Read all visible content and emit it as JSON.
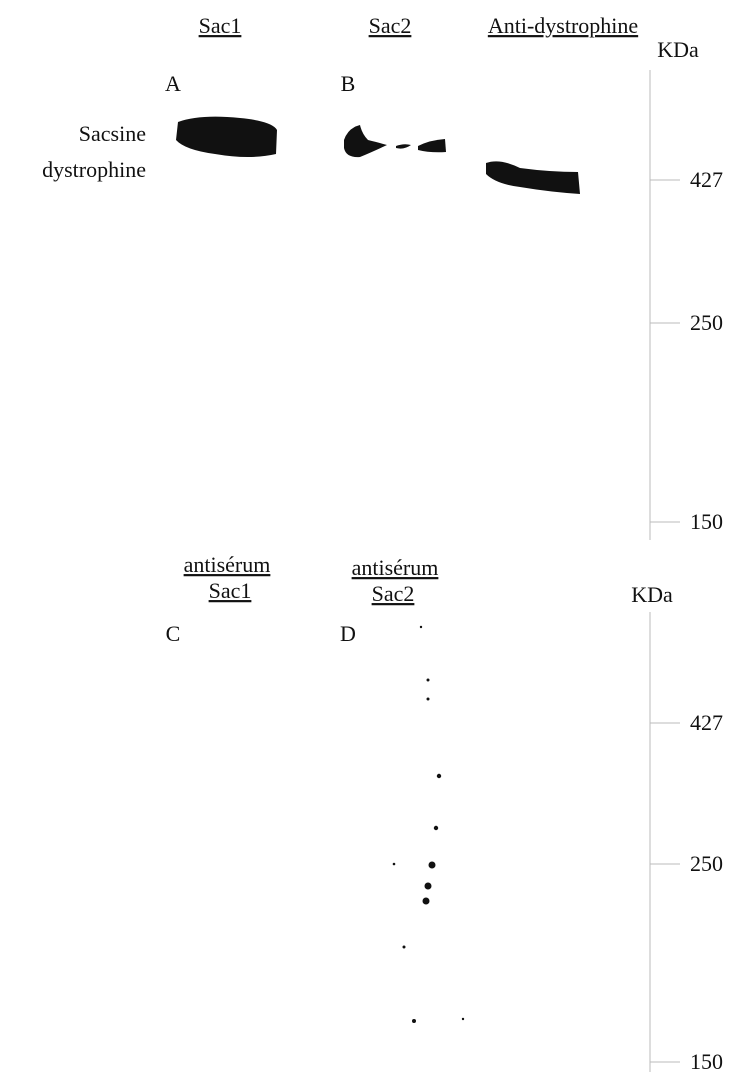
{
  "top_panel": {
    "lanes": [
      {
        "label": "Sac1",
        "letter": "A"
      },
      {
        "label": "Sac2",
        "letter": "B"
      },
      {
        "label": "Anti-dystrophine"
      }
    ],
    "unit": "KDa",
    "band_label": [
      "Sacsine",
      "dystrophine"
    ],
    "markers": [
      "427",
      "250",
      "150"
    ]
  },
  "bottom_panel": {
    "lanes": [
      {
        "label": [
          "antisérum",
          "Sac1"
        ],
        "letter": "C"
      },
      {
        "label": [
          "antisérum",
          "Sac2"
        ],
        "letter": "D"
      }
    ],
    "unit": "KDa",
    "markers": [
      "427",
      "250",
      "150"
    ]
  }
}
